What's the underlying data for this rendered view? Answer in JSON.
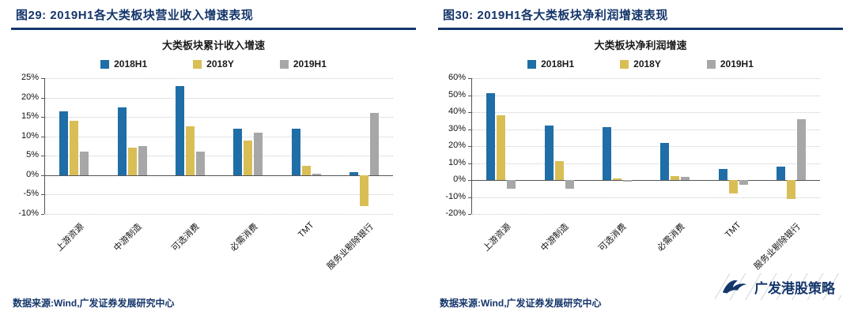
{
  "colors": {
    "navy": "#15366B",
    "series_blue": "#1F6EA7",
    "series_yellow": "#D9BE56",
    "series_gray": "#A7A7A7"
  },
  "panels": [
    {
      "title": "图29: 2019H1各大类板块营业收入增速表现",
      "source": "数据来源:Wind,广发证券发展研究中心"
    },
    {
      "title": "图30: 2019H1各大类板块净利润增速表现",
      "source": "数据来源:Wind,广发证券发展研究中心"
    }
  ],
  "watermark": {
    "label": "广发港股策略",
    "icon": "goose-icon"
  },
  "chart_data": [
    {
      "type": "bar",
      "title": "大类板块累计收入增速",
      "categories": [
        "上游资源",
        "中游制造",
        "可选消费",
        "必需消费",
        "TMT",
        "服务业剔除银行"
      ],
      "series": [
        {
          "name": "2018H1",
          "color": "#1F6EA7",
          "values": [
            16.5,
            17.5,
            23,
            12,
            12,
            0.7
          ]
        },
        {
          "name": "2018Y",
          "color": "#D9BE56",
          "values": [
            14,
            7,
            12.5,
            9,
            2.5,
            -8
          ]
        },
        {
          "name": "2019H1",
          "color": "#A7A7A7",
          "values": [
            6,
            7.5,
            6,
            11,
            0.3,
            16
          ]
        }
      ],
      "ylim": [
        -10,
        25
      ],
      "ytick_step": 5,
      "ytick_suffix": "%",
      "grid": true,
      "legend_position": "top"
    },
    {
      "type": "bar",
      "title": "大类板块净利润增速",
      "categories": [
        "上游资源",
        "中游制造",
        "可选消费",
        "必需消费",
        "TMT",
        "服务业剔除银行"
      ],
      "series": [
        {
          "name": "2018H1",
          "color": "#1F6EA7",
          "values": [
            51,
            32,
            31,
            22,
            6.5,
            8
          ]
        },
        {
          "name": "2018Y",
          "color": "#D9BE56",
          "values": [
            38,
            11,
            1,
            2.5,
            -8,
            -11
          ]
        },
        {
          "name": "2019H1",
          "color": "#A7A7A7",
          "values": [
            -5,
            -5,
            -1,
            2,
            -3,
            36
          ]
        }
      ],
      "ylim": [
        -20,
        60
      ],
      "ytick_step": 10,
      "ytick_suffix": "%",
      "grid": true,
      "legend_position": "top"
    }
  ]
}
